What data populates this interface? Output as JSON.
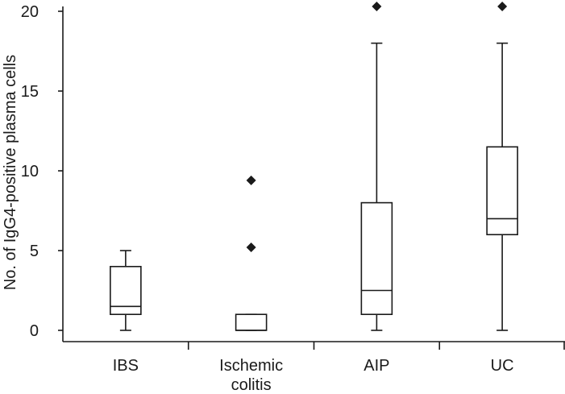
{
  "chart_data": {
    "type": "box",
    "title": "",
    "xlabel": "",
    "ylabel": "No. of IgG4-positive plasma cells",
    "ylim": [
      0,
      20
    ],
    "yticks": [
      0,
      5,
      10,
      15,
      20
    ],
    "grid": false,
    "categories": [
      {
        "label": [
          "IBS"
        ],
        "min": 0,
        "q1": 1,
        "median": 1.5,
        "q3": 4,
        "max": 5,
        "outliers": []
      },
      {
        "label": [
          "Ischemic",
          "colitis"
        ],
        "min": 0,
        "q1": 0,
        "median": 0,
        "q3": 1,
        "max": 1,
        "outliers": [
          5.2,
          9.4
        ]
      },
      {
        "label": [
          "AIP"
        ],
        "min": 0,
        "q1": 1,
        "median": 2.5,
        "q3": 8,
        "max": 18,
        "outliers": [
          20.3
        ]
      },
      {
        "label": [
          "UC"
        ],
        "min": 0,
        "q1": 6,
        "median": 7,
        "q3": 11.5,
        "max": 18,
        "outliers": [
          20.3
        ]
      }
    ]
  }
}
